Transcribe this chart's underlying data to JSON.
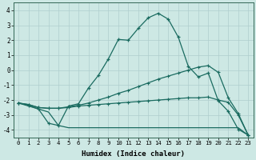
{
  "xlabel": "Humidex (Indice chaleur)",
  "background_color": "#cde8e4",
  "grid_color": "#b0cece",
  "line_color": "#1a6b60",
  "xlim": [
    -0.5,
    23.5
  ],
  "ylim": [
    -4.5,
    4.5
  ],
  "xticks": [
    0,
    1,
    2,
    3,
    4,
    5,
    6,
    7,
    8,
    9,
    10,
    11,
    12,
    13,
    14,
    15,
    16,
    17,
    18,
    19,
    20,
    21,
    22,
    23
  ],
  "yticks": [
    -4,
    -3,
    -2,
    -1,
    0,
    1,
    2,
    3,
    4
  ],
  "line1_x": [
    0,
    1,
    2,
    3,
    4,
    5,
    6,
    7,
    8,
    9,
    10,
    11,
    12,
    13,
    14,
    15,
    16,
    17,
    18,
    19,
    20,
    21,
    22,
    23
  ],
  "line1_y": [
    -2.2,
    -2.35,
    -2.6,
    -3.55,
    -3.7,
    -2.4,
    -2.25,
    -1.2,
    -0.35,
    0.75,
    2.05,
    2.0,
    2.8,
    3.5,
    3.8,
    3.4,
    2.2,
    0.25,
    -0.45,
    -0.2,
    -2.05,
    -2.75,
    -3.95,
    -4.35
  ],
  "line2_x": [
    0,
    1,
    2,
    3,
    4,
    5,
    6,
    7,
    8,
    9,
    10,
    11,
    12,
    13,
    14,
    15,
    16,
    17,
    18,
    19,
    20,
    21,
    22,
    23
  ],
  "line2_y": [
    -2.2,
    -2.3,
    -2.5,
    -2.55,
    -2.55,
    -2.45,
    -2.35,
    -2.2,
    -2.0,
    -1.8,
    -1.55,
    -1.35,
    -1.1,
    -0.85,
    -0.6,
    -0.4,
    -0.2,
    0.0,
    0.2,
    0.3,
    -0.15,
    -1.85,
    -2.9,
    -4.35
  ],
  "line3_x": [
    0,
    1,
    2,
    3,
    4,
    5,
    6,
    7,
    8,
    9,
    10,
    11,
    12,
    13,
    14,
    15,
    16,
    17,
    18,
    19,
    20,
    21,
    22,
    23
  ],
  "line3_y": [
    -2.2,
    -2.3,
    -2.5,
    -2.55,
    -2.55,
    -2.5,
    -2.4,
    -2.35,
    -2.3,
    -2.25,
    -2.2,
    -2.15,
    -2.1,
    -2.05,
    -2.0,
    -1.95,
    -1.9,
    -1.85,
    -1.85,
    -1.8,
    -2.0,
    -2.15,
    -3.0,
    -4.35
  ],
  "line4_x": [
    0,
    3,
    4,
    5,
    6,
    7,
    8,
    9,
    10,
    11,
    12,
    13,
    14,
    15,
    16,
    17,
    18,
    19,
    20,
    21,
    22,
    23
  ],
  "line4_y": [
    -2.2,
    -2.8,
    -3.7,
    -3.85,
    -3.85,
    -3.85,
    -3.85,
    -3.85,
    -3.85,
    -3.85,
    -3.85,
    -3.85,
    -3.85,
    -3.85,
    -3.85,
    -3.85,
    -3.85,
    -3.85,
    -3.85,
    -3.85,
    -3.85,
    -4.35
  ]
}
